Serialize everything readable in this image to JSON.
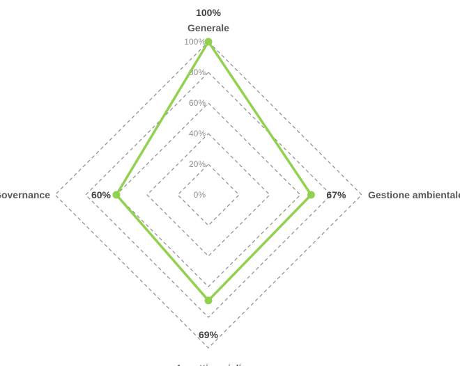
{
  "chart_data": {
    "type": "radar",
    "categories": [
      "Generale",
      "Gestione ambientale",
      "Aspetti sociali",
      "Governance"
    ],
    "values": [
      100,
      67,
      69,
      60
    ],
    "value_labels": [
      "100%",
      "67%",
      "69%",
      "60%"
    ],
    "range": [
      0,
      100
    ],
    "ticks": [
      "0%",
      "20%",
      "40%",
      "60%",
      "80%",
      "100%"
    ],
    "grid": true,
    "legend": "none",
    "series_color": "#92d050",
    "grid_color": "#8c8c8c"
  }
}
